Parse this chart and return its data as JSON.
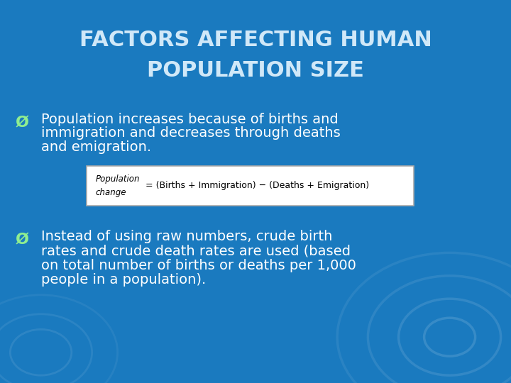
{
  "title_line1": "FACTORS AFFECTING HUMAN",
  "title_line2": "POPULATION SIZE",
  "title_color": "#d0e8f8",
  "bg_color": "#1a7abf",
  "bullet_color": "#90ee90",
  "text_color": "#ffffff",
  "bullet1_line1": "Population increases because of births and",
  "bullet1_line2": "immigration and decreases through deaths",
  "bullet1_line3": "and emigration.",
  "formula_left1": "Population",
  "formula_left2": "change",
  "formula_right": "= (Births + Immigration) − (Deaths + Emigration)",
  "formula_bg": "#ffffff",
  "formula_border": "#aaaaaa",
  "bullet2_line1": "Instead of using raw numbers, crude birth",
  "bullet2_line2": "rates and crude death rates are used (based",
  "bullet2_line3": "on total number of births or deaths per 1,000",
  "bullet2_line4": "people in a population).",
  "circle_radii": [
    0.22,
    0.16,
    0.1,
    0.05
  ],
  "circle_alphas": [
    0.07,
    0.09,
    0.11,
    0.13
  ]
}
